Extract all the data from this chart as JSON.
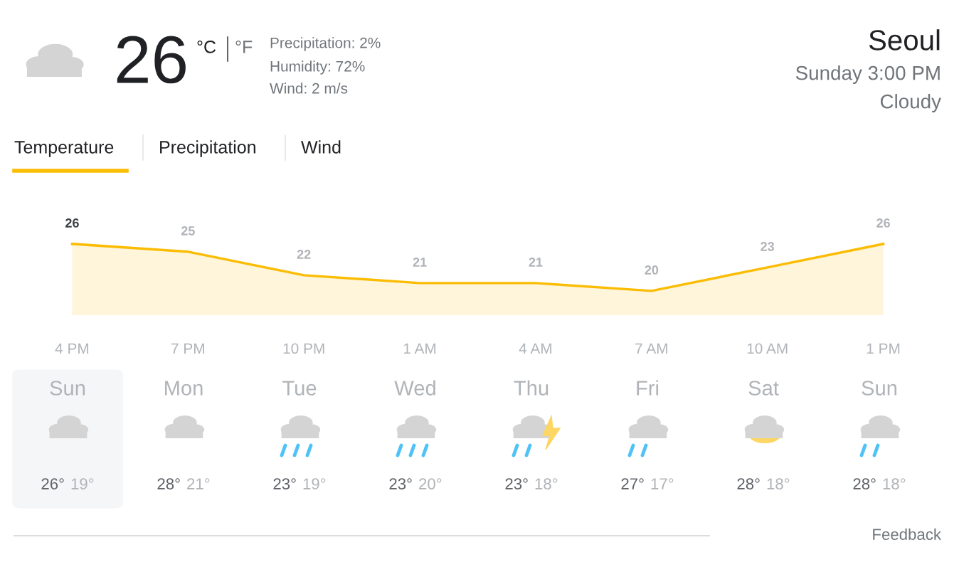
{
  "chart_data": [
    {
      "type": "other",
      "title": "Seoul",
      "subtitle": "Sunday 3:00 PM",
      "annotations": [
        "Cloudy",
        "26",
        "°C",
        "°F",
        "Precipitation: 2%",
        "Humidity: 72%",
        "Wind: 2 m/s",
        "Temperature",
        "Precipitation",
        "Wind"
      ]
    },
    {
      "type": "area",
      "categories": [
        "4 PM",
        "7 PM",
        "10 PM",
        "1 AM",
        "4 AM",
        "7 AM",
        "10 AM",
        "1 PM"
      ],
      "values": [
        26,
        25,
        22,
        21,
        21,
        20,
        23,
        26
      ],
      "color": "#fbbc04",
      "data_labels": true,
      "tick_labels": "x"
    },
    {
      "type": "other",
      "categories": [
        "Sun",
        "Mon",
        "Tue",
        "Wed",
        "Thu",
        "Fri",
        "Sat",
        "Sun"
      ],
      "annotations": [
        "26°",
        "19°",
        "28°",
        "21°",
        "23°",
        "19°",
        "23°",
        "20°",
        "23°",
        "18°",
        "27°",
        "17°",
        "28°",
        "18°",
        "28°",
        "18°",
        "Feedback"
      ]
    }
  ]
}
